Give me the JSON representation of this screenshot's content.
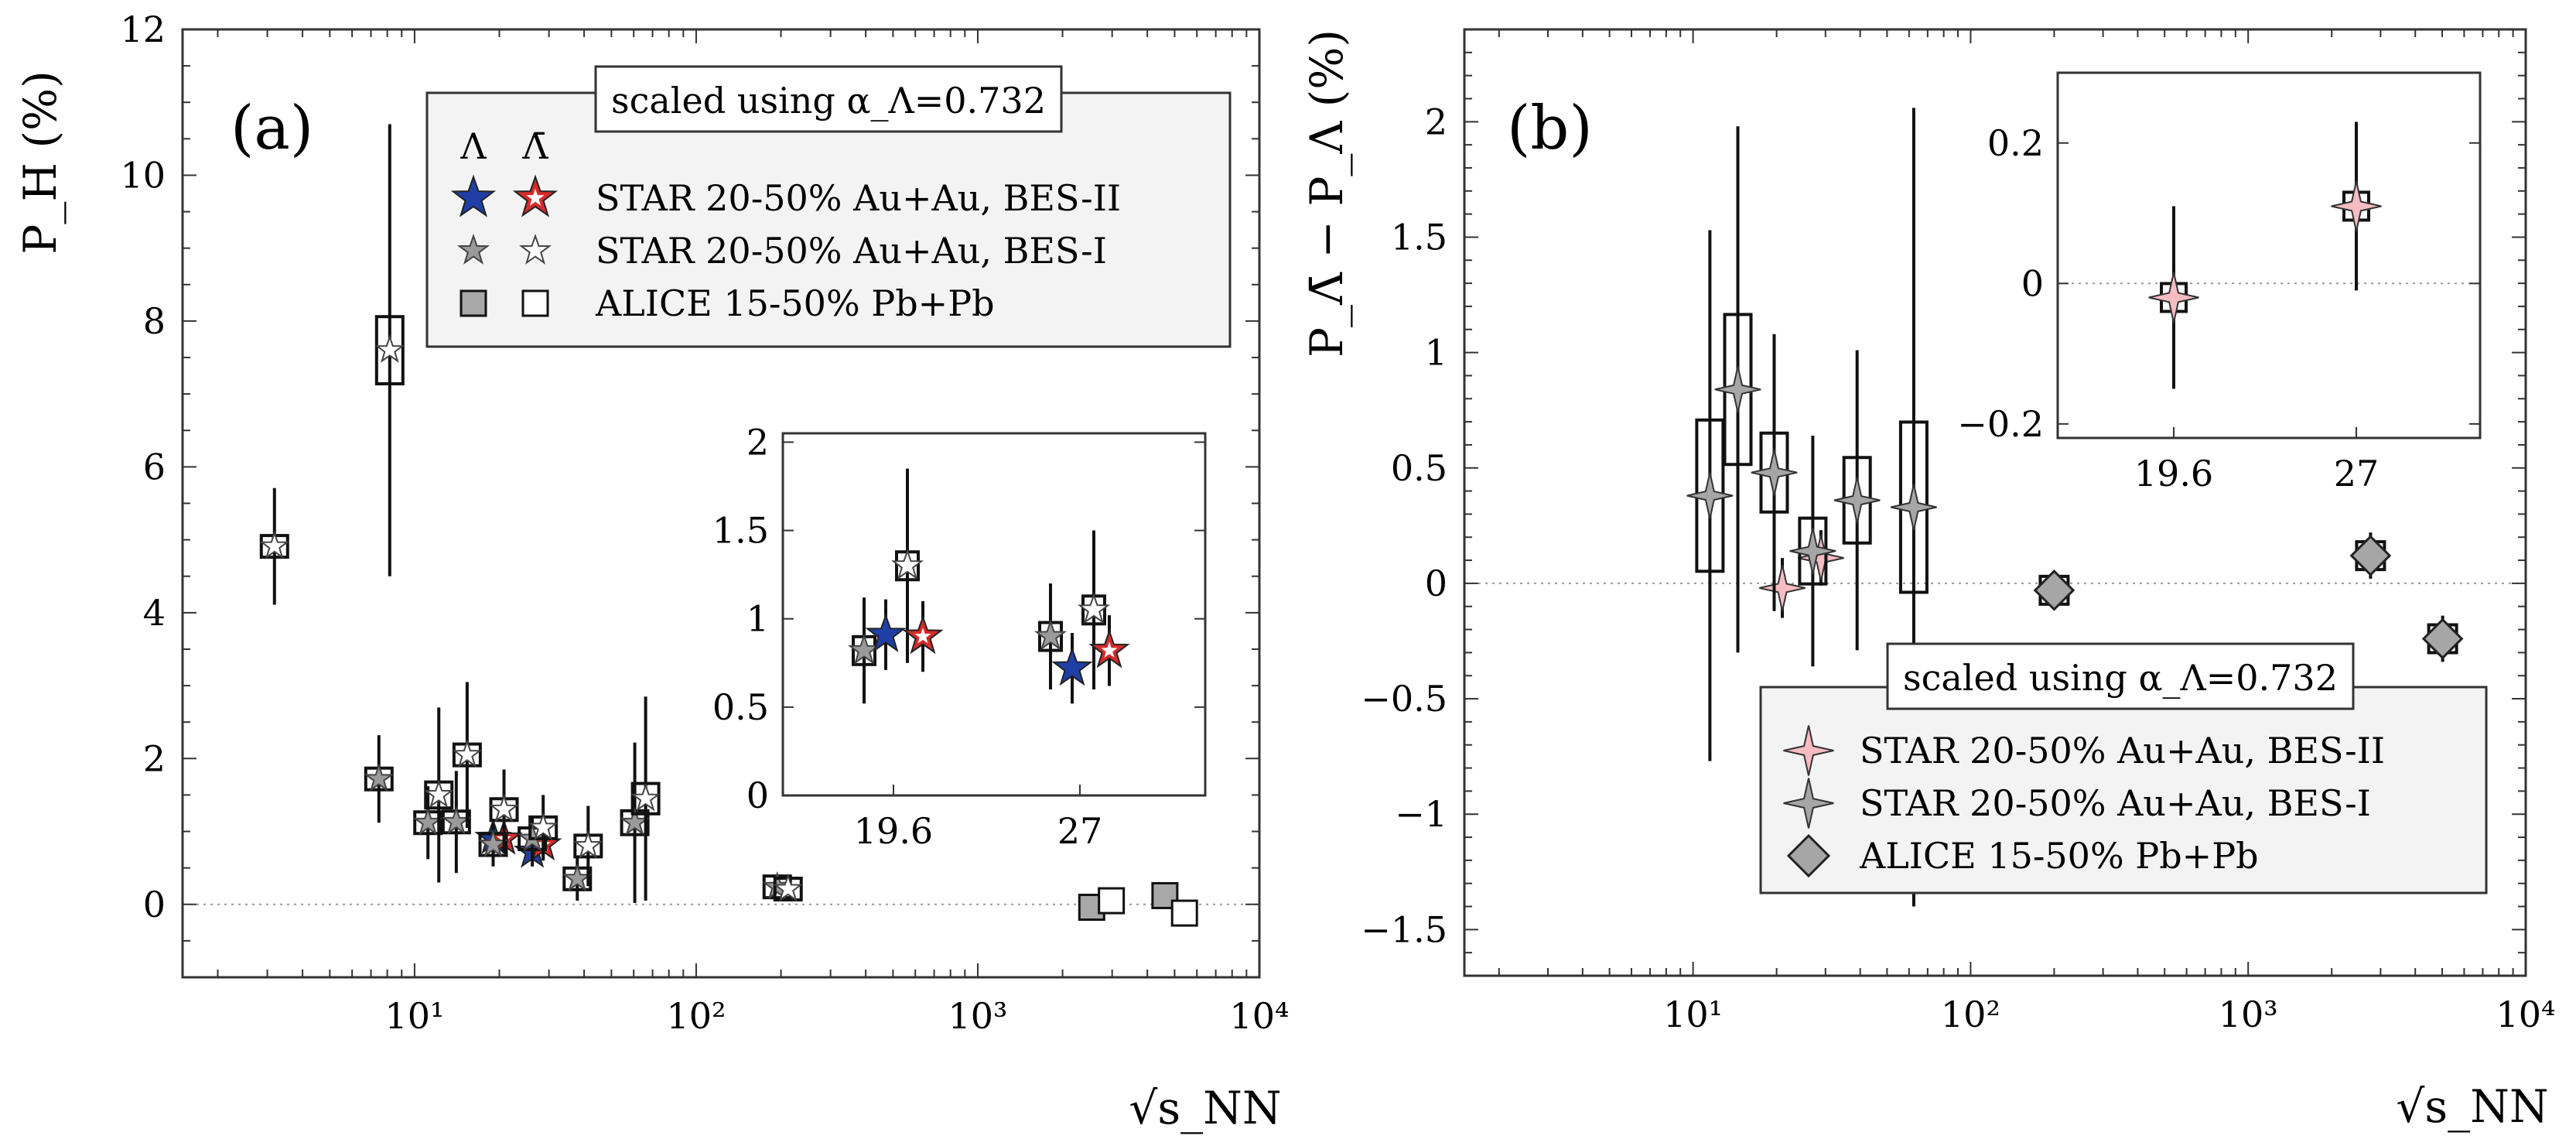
{
  "chart_data": [
    {
      "panel": "(a)",
      "type": "scatter",
      "x_scale": "log",
      "xlabel": "√s_NN",
      "ylabel": "P_H (%)",
      "xlim": [
        1.5,
        10000
      ],
      "ylim": [
        -1,
        12
      ],
      "yticks": [
        "0",
        "2",
        "4",
        "6",
        "8",
        "10",
        "12"
      ],
      "xticks": [
        "10¹",
        "10²",
        "10³",
        "10⁴"
      ],
      "grid": false,
      "legend_note": "scaled using α_Λ=0.732",
      "legend_headers": [
        "Λ",
        "Λ̄"
      ],
      "legend_placement": "top-right",
      "series": [
        {
          "name": "STAR 20-50% Au+Au, BES-II",
          "particle": "Lambda",
          "marker": "star",
          "color": "#1f3fa6",
          "points": [
            {
              "x": 19.6,
              "y": 0.91,
              "err": 0.2
            },
            {
              "x": 27,
              "y": 0.72,
              "err": 0.2
            }
          ]
        },
        {
          "name": "STAR 20-50% Au+Au, BES-II",
          "particle": "AntiLambda",
          "marker": "star",
          "color": "#d62b2b",
          "points": [
            {
              "x": 19.6,
              "y": 0.9,
              "err": 0.2
            },
            {
              "x": 27,
              "y": 0.82,
              "err": 0.2
            }
          ]
        },
        {
          "name": "STAR 20-50% Au+Au, BES-I",
          "particle": "Lambda",
          "marker": "star",
          "color": "#9a9a9a",
          "points": [
            {
              "x": 7.7,
              "y": 1.72,
              "err": 0.6
            },
            {
              "x": 11.5,
              "y": 1.12,
              "err": 0.5
            },
            {
              "x": 14.5,
              "y": 1.13,
              "err": 0.7
            },
            {
              "x": 19.6,
              "y": 0.82,
              "err": 0.3
            },
            {
              "x": 27,
              "y": 0.9,
              "err": 0.3
            },
            {
              "x": 39,
              "y": 0.35,
              "err": 0.3
            },
            {
              "x": 62.4,
              "y": 1.12,
              "err": 1.1
            },
            {
              "x": 200,
              "y": 0.24,
              "err": 0.06
            }
          ]
        },
        {
          "name": "STAR 20-50% Au+Au, BES-I",
          "particle": "AntiLambda",
          "marker": "star",
          "color": "#ffffff",
          "points": [
            {
              "x": 3,
              "y": 4.91,
              "err": 0.8
            },
            {
              "x": 7.7,
              "y": 7.6,
              "err": 3.1
            },
            {
              "x": 11.5,
              "y": 1.5,
              "err": 1.2
            },
            {
              "x": 14.5,
              "y": 2.05,
              "err": 1.0
            },
            {
              "x": 19.6,
              "y": 1.3,
              "err": 0.55
            },
            {
              "x": 27,
              "y": 1.05,
              "err": 0.45
            },
            {
              "x": 39,
              "y": 0.8,
              "err": 0.55
            },
            {
              "x": 62.4,
              "y": 1.45,
              "err": 1.4
            },
            {
              "x": 200,
              "y": 0.21,
              "err": 0.06
            }
          ]
        },
        {
          "name": "ALICE 15-50% Pb+Pb",
          "particle": "Lambda",
          "marker": "square",
          "color": "#a8a8a8",
          "points": [
            {
              "x": 2760,
              "y": -0.04,
              "err": 0.1
            },
            {
              "x": 5020,
              "y": 0.12,
              "err": 0.1
            }
          ]
        },
        {
          "name": "ALICE 15-50% Pb+Pb",
          "particle": "AntiLambda",
          "marker": "square",
          "color": "#ffffff",
          "points": [
            {
              "x": 2760,
              "y": 0.05,
              "err": 0.1
            },
            {
              "x": 5020,
              "y": -0.12,
              "err": 0.1
            }
          ]
        }
      ],
      "inset": {
        "categories": [
          "19.6",
          "27"
        ],
        "ylim": [
          0,
          2.05
        ],
        "yticks": [
          "0",
          "0.5",
          "1",
          "1.5",
          "2"
        ]
      }
    },
    {
      "panel": "(b)",
      "type": "scatter",
      "x_scale": "log",
      "xlabel": "√s_NN",
      "ylabel": "P_Λ̄ − P_Λ (%)",
      "xlim": [
        1.5,
        10000
      ],
      "ylim": [
        -1.7,
        2.4
      ],
      "yticks": [
        "−1.5",
        "−1",
        "−0.5",
        "0",
        "0.5",
        "1",
        "1.5",
        "2"
      ],
      "xticks": [
        "10¹",
        "10²",
        "10³",
        "10⁴"
      ],
      "grid": false,
      "legend_note": "scaled using α_Λ=0.732",
      "legend_placement": "bottom-right",
      "series": [
        {
          "name": "STAR 20-50% Au+Au, BES-II",
          "marker": "four-point-star",
          "color": "#f6bcc2",
          "points": [
            {
              "x": 19.6,
              "y": -0.02,
              "err": 0.13
            },
            {
              "x": 27,
              "y": 0.11,
              "err": 0.12
            }
          ]
        },
        {
          "name": "STAR 20-50% Au+Au, BES-I",
          "marker": "four-point-star",
          "color": "#a6a6a6",
          "points": [
            {
              "x": 11.5,
              "y": 0.38,
              "err": 1.15
            },
            {
              "x": 14.5,
              "y": 0.84,
              "err": 1.14
            },
            {
              "x": 19.6,
              "y": 0.48,
              "err": 0.6
            },
            {
              "x": 27,
              "y": 0.14,
              "err": 0.5
            },
            {
              "x": 39,
              "y": 0.36,
              "err": 0.65
            },
            {
              "x": 62.4,
              "y": 0.33,
              "err": 1.73
            }
          ]
        },
        {
          "name": "ALICE 15-50% Pb+Pb",
          "marker": "diamond",
          "color": "#a6a6a6",
          "points": [
            {
              "x": 200,
              "y": -0.03,
              "err": 0.06
            },
            {
              "x": 2760,
              "y": 0.12,
              "err": 0.1
            },
            {
              "x": 5020,
              "y": -0.24,
              "err": 0.1
            }
          ]
        }
      ],
      "inset": {
        "categories": [
          "19.6",
          "27"
        ],
        "ylim": [
          -0.22,
          0.3
        ],
        "yticks": [
          "−0.2",
          "0",
          "0.2"
        ]
      }
    }
  ]
}
